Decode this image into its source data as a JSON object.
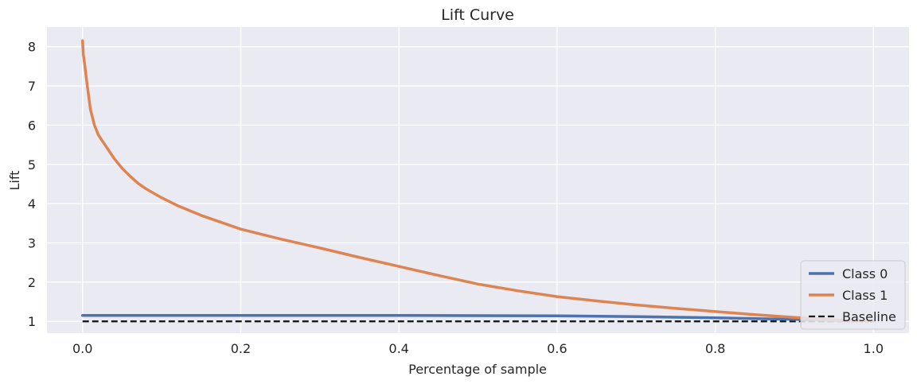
{
  "chart_data": {
    "type": "line",
    "title": "Lift Curve",
    "xlabel": "Percentage of sample",
    "ylabel": "Lift",
    "xlim": [
      -0.045,
      1.045
    ],
    "ylim": [
      0.7,
      8.5
    ],
    "xticks": [
      0.0,
      0.2,
      0.4,
      0.6,
      0.8,
      1.0
    ],
    "xtick_labels": [
      "0.0",
      "0.2",
      "0.4",
      "0.6",
      "0.8",
      "1.0"
    ],
    "yticks": [
      1,
      2,
      3,
      4,
      5,
      6,
      7,
      8
    ],
    "ytick_labels": [
      "1",
      "2",
      "3",
      "4",
      "5",
      "6",
      "7",
      "8"
    ],
    "grid": true,
    "legend_position": "lower-right",
    "series": [
      {
        "name": "Class 0",
        "color": "#4c72b0",
        "style": "solid",
        "x": [
          0.0,
          0.2,
          0.4,
          0.6,
          0.7,
          0.8,
          0.9,
          1.0
        ],
        "y": [
          1.15,
          1.15,
          1.15,
          1.14,
          1.12,
          1.09,
          1.05,
          1.0
        ]
      },
      {
        "name": "Class 1",
        "color": "#dd8452",
        "style": "solid",
        "x": [
          0.0,
          0.001,
          0.003,
          0.006,
          0.01,
          0.015,
          0.02,
          0.03,
          0.04,
          0.05,
          0.06,
          0.07,
          0.08,
          0.1,
          0.12,
          0.15,
          0.2,
          0.25,
          0.3,
          0.35,
          0.4,
          0.45,
          0.5,
          0.55,
          0.6,
          0.65,
          0.7,
          0.75,
          0.8,
          0.85,
          0.9,
          0.95,
          1.0
        ],
        "y": [
          8.15,
          7.8,
          7.5,
          7.0,
          6.4,
          6.0,
          5.75,
          5.45,
          5.15,
          4.9,
          4.7,
          4.52,
          4.38,
          4.15,
          3.95,
          3.7,
          3.35,
          3.1,
          2.87,
          2.63,
          2.4,
          2.17,
          1.95,
          1.78,
          1.63,
          1.52,
          1.42,
          1.33,
          1.25,
          1.17,
          1.1,
          1.04,
          1.0
        ]
      },
      {
        "name": "Baseline",
        "color": "#1a1a1a",
        "style": "dashed",
        "x": [
          0.0,
          1.0
        ],
        "y": [
          1.0,
          1.0
        ]
      }
    ]
  }
}
